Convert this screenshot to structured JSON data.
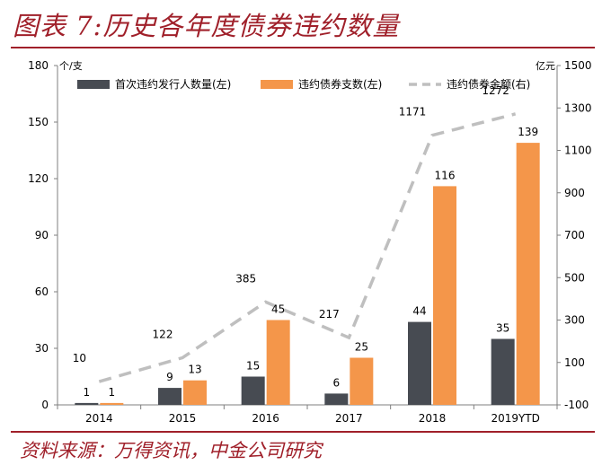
{
  "figure_title": "图表 7:历史各年度债券违约数量",
  "source_note": "资料来源：万得资讯，中金公司研究",
  "colors": {
    "accent": "#a0202a",
    "series_first_issuers": "#474b52",
    "series_bond_count": "#f4964a",
    "series_amount": "#bfbfbf"
  },
  "chart_data": {
    "type": "bar",
    "categories": [
      "2014",
      "2015",
      "2016",
      "2017",
      "2018",
      "2019YTD"
    ],
    "series": [
      {
        "name": "首次违约发行人数量(左)",
        "axis": "left",
        "kind": "bar",
        "values": [
          1,
          9,
          15,
          6,
          44,
          35
        ]
      },
      {
        "name": "违约债券支数(左)",
        "axis": "left",
        "kind": "bar",
        "values": [
          1,
          13,
          45,
          25,
          116,
          139
        ]
      },
      {
        "name": "违约债券金额(右)",
        "axis": "right",
        "kind": "line",
        "style": "dashed",
        "values": [
          10,
          122,
          385,
          217,
          1171,
          1272
        ]
      }
    ],
    "left_axis": {
      "unit": "个/支",
      "range": [
        0,
        180
      ],
      "ticks": [
        "0",
        "30",
        "60",
        "90",
        "120",
        "150",
        "180"
      ]
    },
    "right_axis": {
      "unit": "亿元",
      "range": [
        -100,
        1500
      ],
      "ticks": [
        "-100",
        "100",
        "300",
        "500",
        "700",
        "900",
        "1100",
        "1300",
        "1500"
      ]
    },
    "legend_position": "top",
    "grid": false
  }
}
